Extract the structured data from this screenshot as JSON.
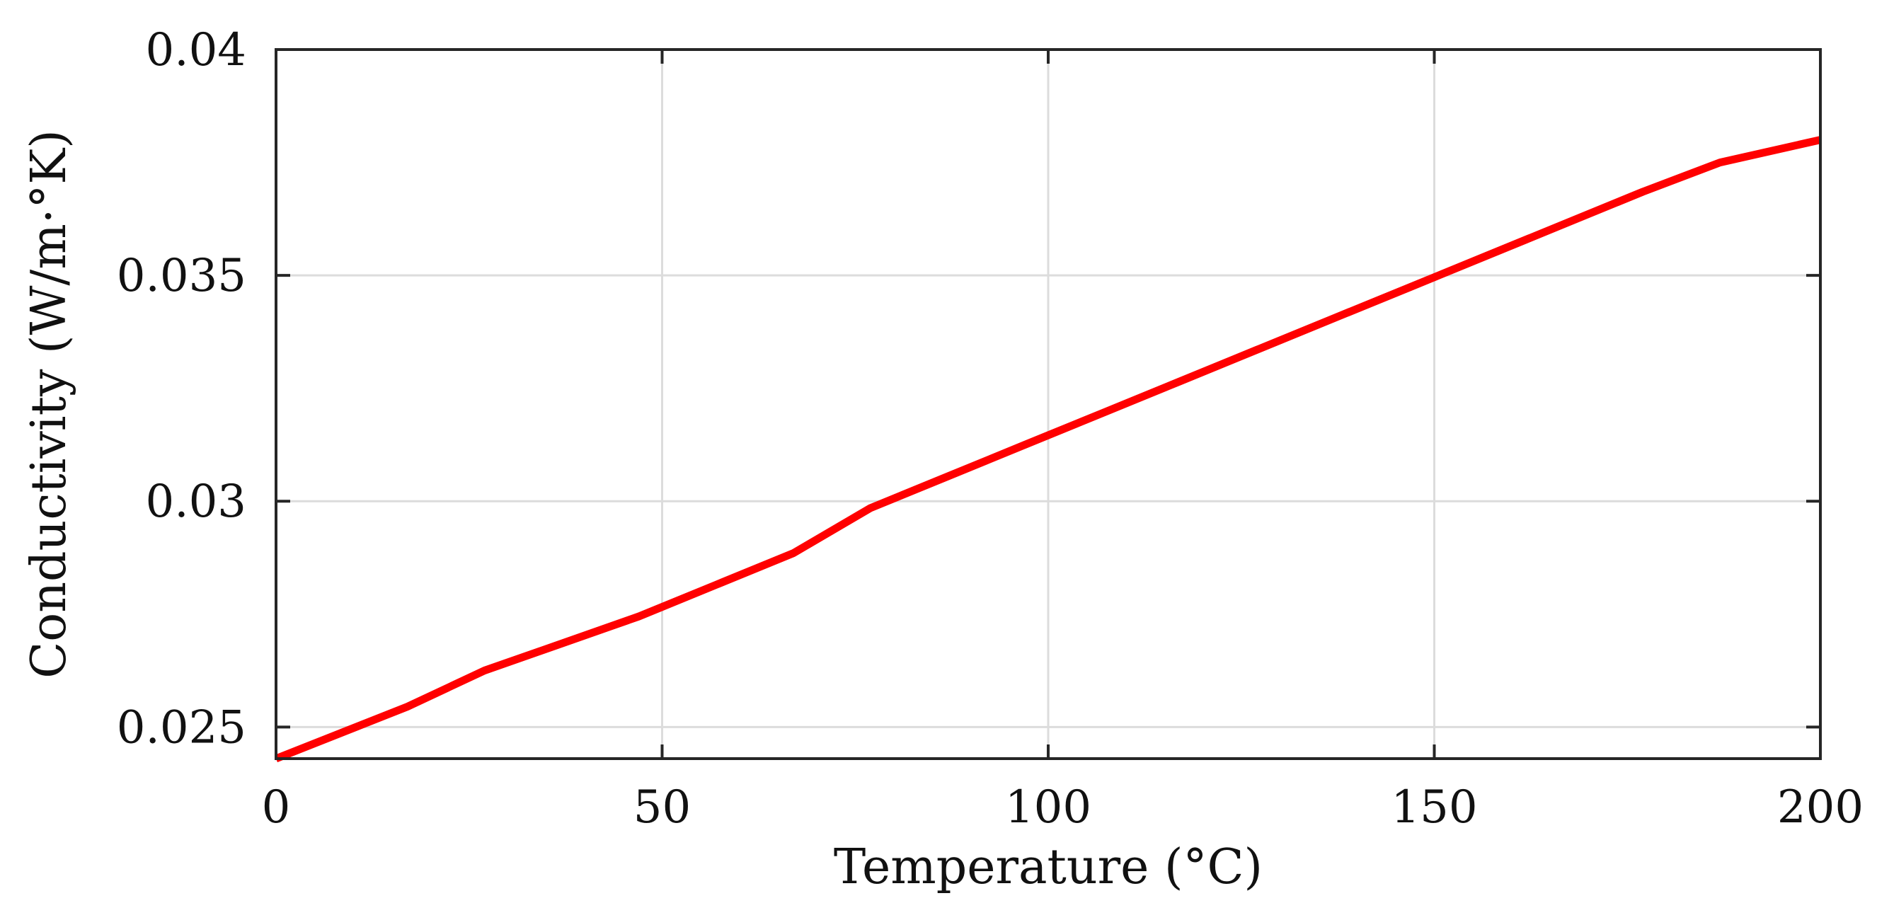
{
  "chart_data": {
    "type": "line",
    "title": "",
    "xlabel": "Temperature (°C)",
    "ylabel": "Conductivity (W/m·°K)",
    "xlim": [
      0,
      200
    ],
    "ylim": [
      0.0243,
      0.04
    ],
    "grid": true,
    "x_ticks": [
      0,
      50,
      100,
      150,
      200
    ],
    "x_tick_labels": [
      "0",
      "50",
      "100",
      "150",
      "200"
    ],
    "y_ticks": [
      0.025,
      0.03,
      0.035,
      0.04
    ],
    "y_tick_labels": [
      "0.025",
      "0.03",
      "0.035",
      "0.04"
    ],
    "series": [
      {
        "name": "Conductivity",
        "color": "#ff0000",
        "x": [
          0,
          17,
          27,
          37,
          47,
          57,
          67,
          77,
          87,
          97,
          107,
          117,
          127,
          137,
          147,
          157,
          167,
          177,
          187,
          200
        ],
        "y": [
          0.0243,
          0.02545,
          0.02625,
          0.02685,
          0.02745,
          0.02815,
          0.02885,
          0.02985,
          0.03055,
          0.03125,
          0.03195,
          0.03265,
          0.03335,
          0.03405,
          0.03475,
          0.03545,
          0.03615,
          0.03685,
          0.0375,
          0.038
        ]
      }
    ]
  }
}
